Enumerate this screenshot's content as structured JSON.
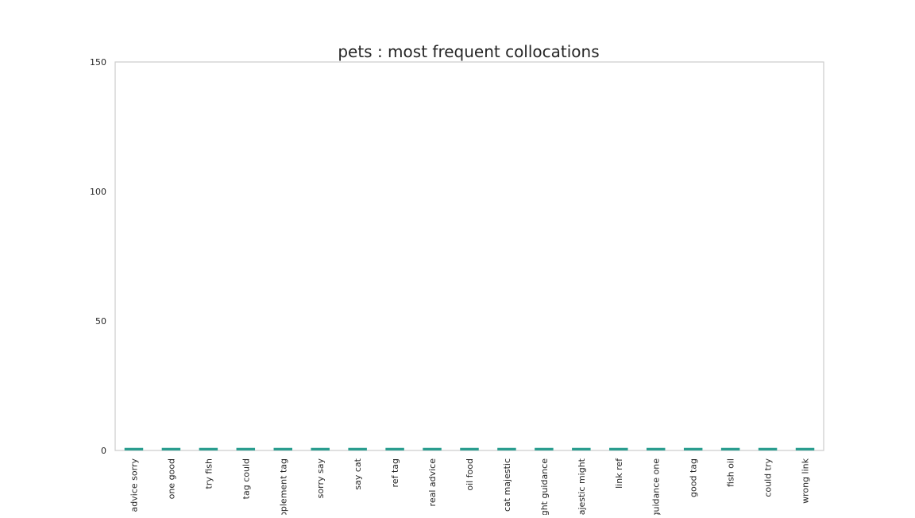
{
  "chart_data": {
    "type": "bar",
    "title": "pets : most frequent collocations",
    "xlabel": "",
    "ylabel": "",
    "ylim": [
      0,
      150
    ],
    "yticks": [
      0,
      50,
      100,
      150
    ],
    "grid": false,
    "bar_color": "#2a9d8f",
    "categories": [
      "advice sorry",
      "one good",
      "try fish",
      "tag could",
      "upplement tag",
      "sorry say",
      "say cat",
      "ref tag",
      "real advice",
      "oil food",
      "cat majestic",
      "night guidance",
      "majestic might",
      "link ref",
      "guidance one",
      "good tag",
      "fish oil",
      "could try",
      "wrong link"
    ],
    "values": [
      1,
      1,
      1,
      1,
      1,
      1,
      1,
      1,
      1,
      1,
      1,
      1,
      1,
      1,
      1,
      1,
      1,
      1,
      1
    ]
  }
}
